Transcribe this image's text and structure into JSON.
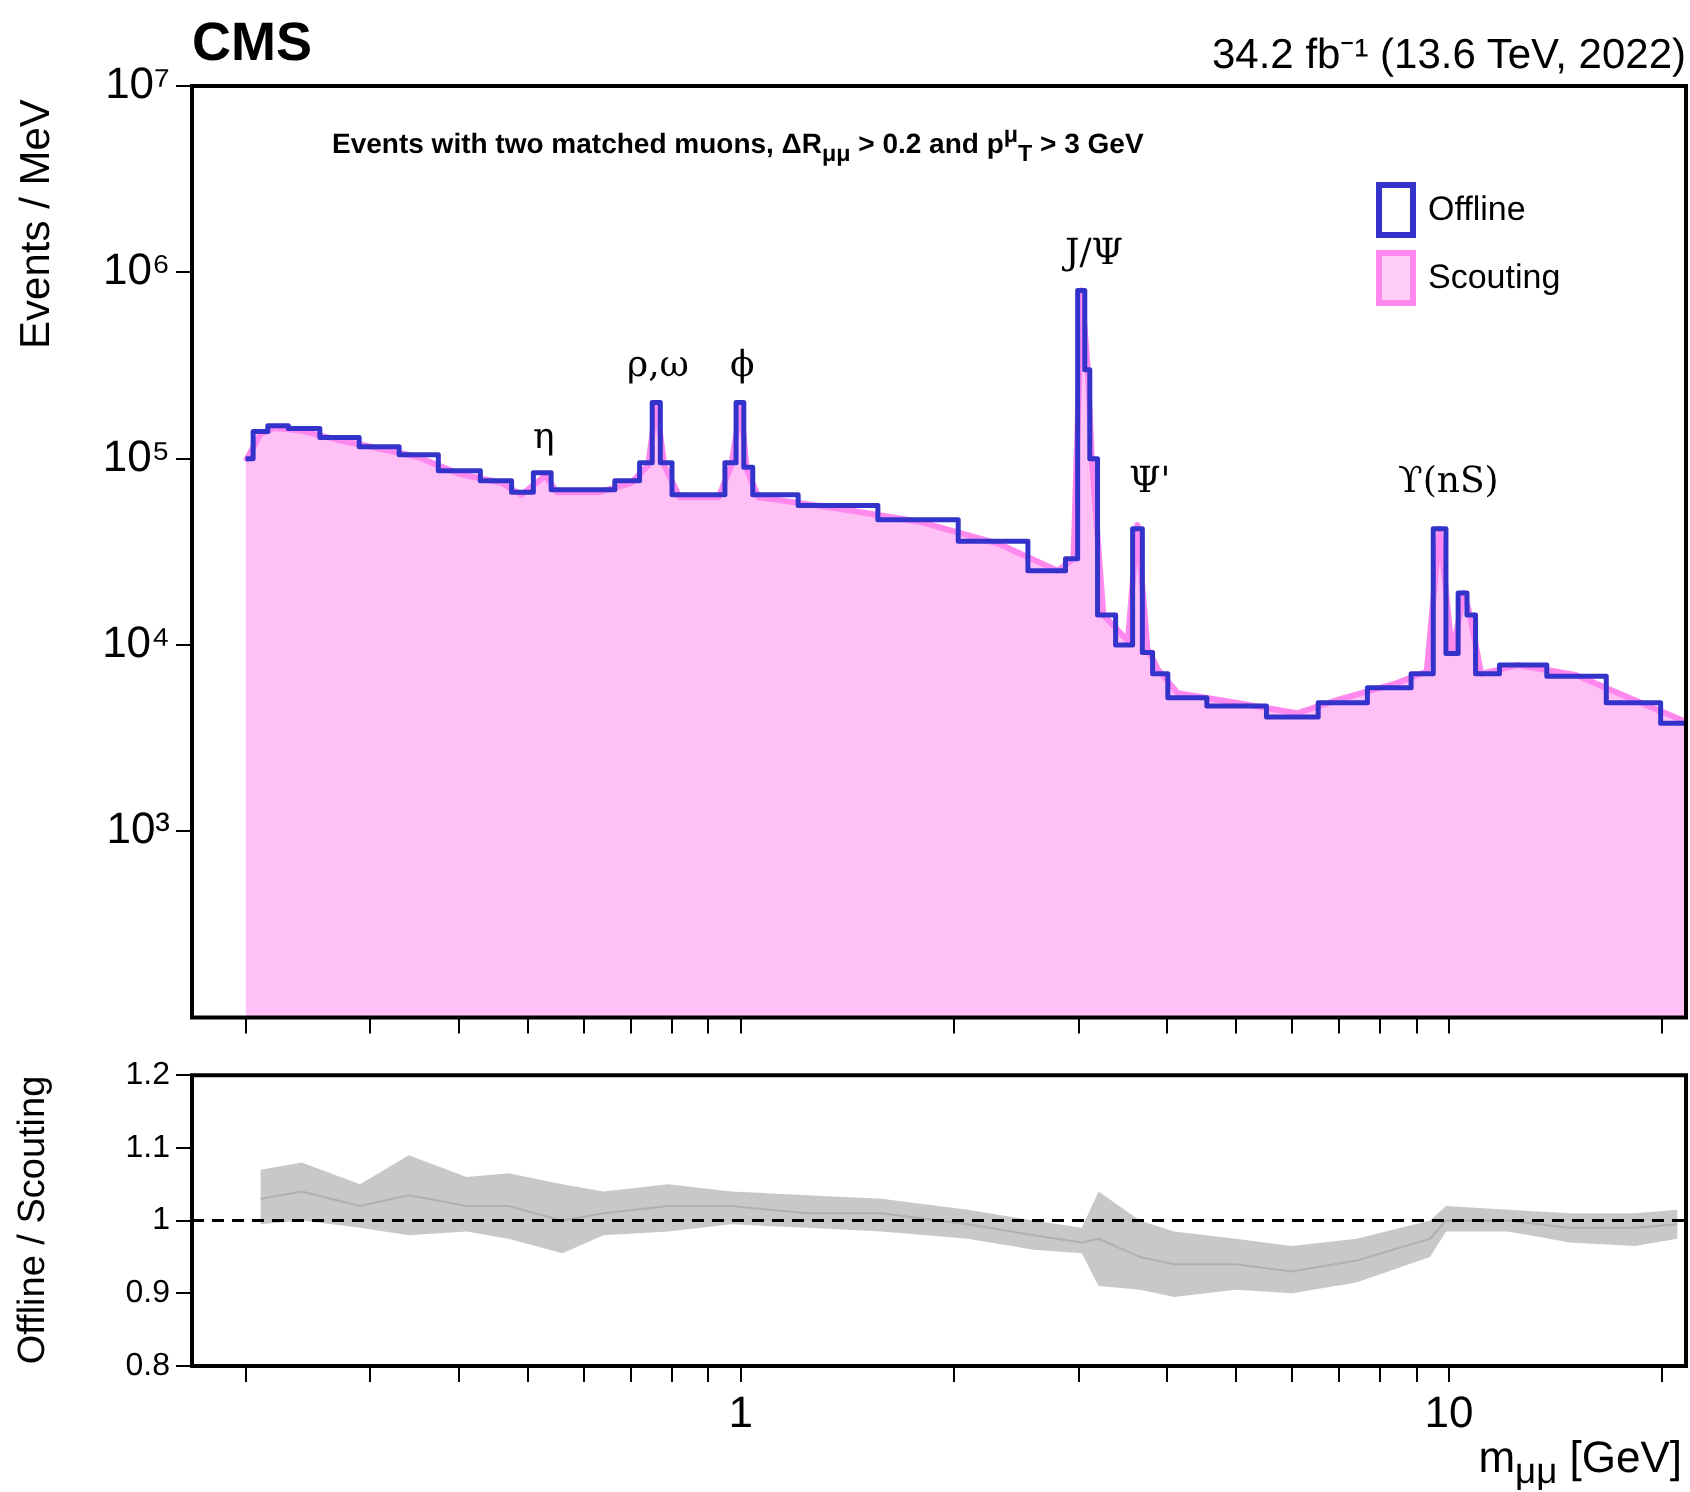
{
  "chart_data": [
    {
      "type": "step",
      "title": "CMS",
      "subtitle": "34.2 fb⁻¹ (13.6 TeV, 2022)",
      "ylabel": "Events / MeV",
      "log": "xy",
      "legend": "top right",
      "tick_labels": "y",
      "annotations": [
        "Events with two matched muons, ΔR$_{μμ}$ > 0.2 and p$^{μ}$$_{T}$ > 3 GeV",
        "η",
        "ρ,ω",
        "ϕ",
        "J/Ψ",
        "Ψ'",
        "ϒ(nS)"
      ],
      "xlim": [
        0.168,
        21.6
      ],
      "xticks": [
        {
          "value": 0.2,
          "label": null
        },
        {
          "value": 0.3,
          "label": null
        },
        {
          "value": 0.4,
          "label": null
        },
        {
          "value": 0.5,
          "label": null
        },
        {
          "value": 0.6,
          "label": null
        },
        {
          "value": 0.7,
          "label": null
        },
        {
          "value": 0.8,
          "label": null
        },
        {
          "value": 0.9,
          "label": null
        },
        {
          "value": 1,
          "label": null
        },
        {
          "value": 2,
          "label": null
        },
        {
          "value": 3,
          "label": null
        },
        {
          "value": 4,
          "label": null
        },
        {
          "value": 5,
          "label": null
        },
        {
          "value": 6,
          "label": null
        },
        {
          "value": 7,
          "label": null
        },
        {
          "value": 8,
          "label": null
        },
        {
          "value": 9,
          "label": null
        },
        {
          "value": 10,
          "label": null
        },
        {
          "value": 20,
          "label": null
        }
      ],
      "ylim": [
        100,
        10000000
      ],
      "yticks": [
        {
          "value": 1000,
          "label": "10³"
        },
        {
          "value": 10000,
          "label": "10⁴"
        },
        {
          "value": 100000,
          "label": "10⁵"
        },
        {
          "value": 1000000,
          "label": "10⁶"
        },
        {
          "value": 10000000,
          "label": "10⁷"
        }
      ],
      "x": [
        0.2,
        0.21,
        0.22,
        0.24,
        0.27,
        0.31,
        0.35,
        0.4,
        0.46,
        0.49,
        0.53,
        0.55,
        0.63,
        0.7,
        0.74,
        0.76,
        0.78,
        0.82,
        0.93,
        0.97,
        1.0,
        1.02,
        1.06,
        1.37,
        1.78,
        2.31,
        2.8,
        2.95,
        3.03,
        3.09,
        3.13,
        3.25,
        3.52,
        3.63,
        3.75,
        3.88,
        4.14,
        5.0,
        6.1,
        7.0,
        8.4,
        9.3,
        9.7,
        10.1,
        10.5,
        10.7,
        11.1,
        12.5,
        15.1,
        18.4,
        21.5
      ],
      "series": [
        {
          "name": "Offline",
          "color": "#3333cc",
          "values": [
            100000,
            140000,
            150000,
            145000,
            130000,
            116000,
            105000,
            86000,
            76000,
            66000,
            84000,
            68000,
            68000,
            76000,
            95000,
            200000,
            95000,
            64000,
            64000,
            95000,
            200000,
            90000,
            64000,
            56000,
            47000,
            36000,
            25000,
            29000,
            800000,
            300000,
            100000,
            14500,
            10000,
            42000,
            9100,
            7000,
            5200,
            4700,
            4100,
            4900,
            5900,
            7000,
            42000,
            9000,
            19000,
            14500,
            7000,
            7800,
            6800,
            4900,
            3800
          ]
        },
        {
          "name": "Scouting",
          "type": "area",
          "color": "#ff88ee",
          "values": [
            97000,
            136000,
            146000,
            141000,
            126000,
            113000,
            102000,
            83000,
            74000,
            64000,
            81000,
            66000,
            66000,
            74000,
            92000,
            194000,
            92000,
            62000,
            62000,
            92000,
            194000,
            87000,
            62000,
            54000,
            46000,
            35000,
            25000,
            29000,
            800000,
            300000,
            100000,
            14500,
            10500,
            44000,
            9600,
            7400,
            5500,
            4900,
            4300,
            5100,
            6200,
            7200,
            42000,
            9000,
            19000,
            14500,
            7000,
            7800,
            6900,
            5000,
            3900
          ]
        }
      ]
    },
    {
      "type": "line",
      "ylabel": "Offline / Scouting",
      "xlabel": "m$_{μμ}$ [GeV]",
      "log": "x",
      "xlim": [
        0.168,
        21.6
      ],
      "xticks": [
        {
          "value": 0.2,
          "label": null
        },
        {
          "value": 0.3,
          "label": null
        },
        {
          "value": 0.4,
          "label": null
        },
        {
          "value": 0.5,
          "label": null
        },
        {
          "value": 0.6,
          "label": null
        },
        {
          "value": 0.7,
          "label": null
        },
        {
          "value": 0.8,
          "label": null
        },
        {
          "value": 0.9,
          "label": null
        },
        1,
        {
          "value": 2,
          "label": null
        },
        {
          "value": 3,
          "label": null
        },
        {
          "value": 4,
          "label": null
        },
        {
          "value": 5,
          "label": null
        },
        {
          "value": 6,
          "label": null
        },
        {
          "value": 7,
          "label": null
        },
        {
          "value": 8,
          "label": null
        },
        {
          "value": 9,
          "label": null
        },
        10,
        {
          "value": 20,
          "label": null
        }
      ],
      "ylim": [
        0.8,
        1.2
      ],
      "yticks": [
        0.8,
        0.9,
        1,
        1.1,
        1.2
      ],
      "ref_lines": [
        {
          "axis": "y",
          "value": 1,
          "line_style": "dashed"
        }
      ],
      "series": [
        {
          "color": "#b0b0b0",
          "x": [
            0.21,
            0.24,
            0.29,
            0.34,
            0.41,
            0.47,
            0.56,
            0.64,
            0.79,
            0.97,
            1.24,
            1.58,
            2.09,
            2.59,
            3.03,
            3.2,
            3.66,
            4.09,
            5.0,
            6.0,
            7.4,
            9.4,
            9.9,
            12.1,
            14.8,
            18.3,
            21.0
          ],
          "values": [
            1.03,
            1.04,
            1.02,
            1.035,
            1.02,
            1.02,
            1.0,
            1.01,
            1.02,
            1.02,
            1.01,
            1.01,
            0.995,
            0.98,
            0.97,
            0.975,
            0.95,
            0.94,
            0.94,
            0.93,
            0.945,
            0.975,
            1.0,
            1.0,
            0.99,
            0.99,
            0.995
          ],
          "lower": [
            0.995,
            1.0,
            0.99,
            0.98,
            0.985,
            0.975,
            0.955,
            0.98,
            0.985,
            0.995,
            0.99,
            0.985,
            0.975,
            0.96,
            0.955,
            0.91,
            0.905,
            0.895,
            0.905,
            0.9,
            0.915,
            0.95,
            0.985,
            0.985,
            0.97,
            0.965,
            0.975
          ],
          "upper": [
            1.07,
            1.08,
            1.05,
            1.09,
            1.06,
            1.065,
            1.05,
            1.04,
            1.05,
            1.04,
            1.035,
            1.03,
            1.015,
            1.0,
            0.99,
            1.04,
            1.0,
            0.985,
            0.975,
            0.965,
            0.975,
            1.0,
            1.02,
            1.015,
            1.01,
            1.01,
            1.015
          ]
        }
      ]
    }
  ]
}
